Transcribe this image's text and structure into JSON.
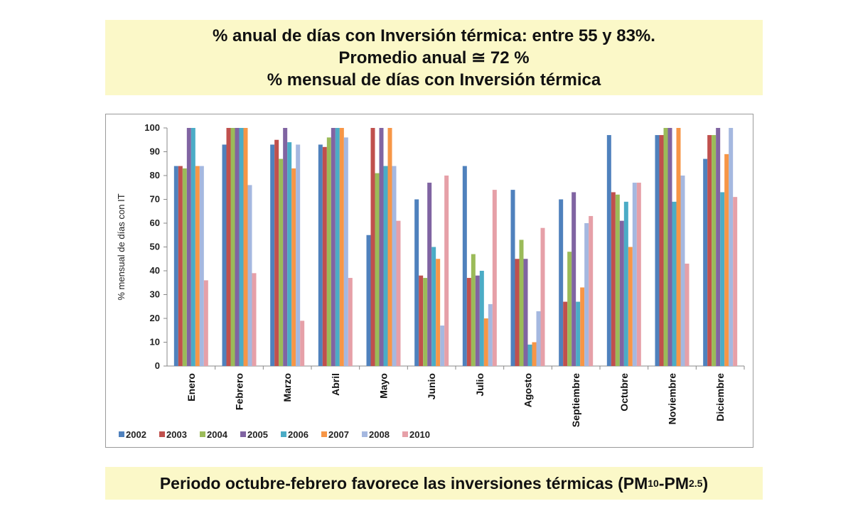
{
  "header": {
    "line1": "% anual de días con Inversión térmica: entre 55 y 83%.",
    "line2": "Promedio anual ≅ 72 %",
    "line3": "% mensual de días con Inversión térmica"
  },
  "footer": {
    "text": "Periodo octubre-febrero favorece las inversiones térmicas (PM",
    "sub1": "10",
    "dash": "-PM",
    "sub2": "2.5",
    "close": ")"
  },
  "chart_data": {
    "type": "bar",
    "title": "",
    "xlabel": "",
    "ylabel": "% mensual de días con IT",
    "ylim": [
      0,
      100
    ],
    "yticks": [
      0,
      10,
      20,
      30,
      40,
      50,
      60,
      70,
      80,
      90,
      100
    ],
    "grid": false,
    "legend_position": "bottom-left",
    "categories": [
      "Enero",
      "Febrero",
      "Marzo",
      "Abril",
      "Mayo",
      "Junio",
      "Julio",
      "Agosto",
      "Septiembre",
      "Octubre",
      "Noviembre",
      "Diciembre"
    ],
    "series": [
      {
        "name": "2002",
        "color": "#4f81bd",
        "values": [
          84,
          93,
          93,
          93,
          55,
          70,
          84,
          74,
          70,
          97,
          97,
          87
        ]
      },
      {
        "name": "2003",
        "color": "#c0504d",
        "values": [
          84,
          100,
          95,
          92,
          100,
          38,
          37,
          45,
          27,
          73,
          97,
          97
        ]
      },
      {
        "name": "2004",
        "color": "#9bbb59",
        "values": [
          83,
          100,
          87,
          96,
          81,
          37,
          47,
          53,
          48,
          72,
          100,
          97
        ]
      },
      {
        "name": "2005",
        "color": "#8064a2",
        "values": [
          100,
          100,
          100,
          100,
          100,
          77,
          38,
          45,
          73,
          61,
          100,
          100
        ]
      },
      {
        "name": "2006",
        "color": "#4bacc6",
        "values": [
          100,
          100,
          94,
          100,
          84,
          50,
          40,
          9,
          27,
          69,
          69,
          73
        ]
      },
      {
        "name": "2007",
        "color": "#f79646",
        "values": [
          84,
          100,
          83,
          100,
          100,
          45,
          20,
          10,
          33,
          50,
          100,
          89
        ]
      },
      {
        "name": "2008",
        "color": "#a5b8e0",
        "values": [
          84,
          76,
          93,
          96,
          84,
          17,
          26,
          23,
          60,
          77,
          80,
          100
        ]
      },
      {
        "name": "2010",
        "color": "#e6a0a8",
        "values": [
          36,
          39,
          19,
          37,
          61,
          80,
          74,
          58,
          63,
          77,
          43,
          71
        ]
      }
    ]
  }
}
